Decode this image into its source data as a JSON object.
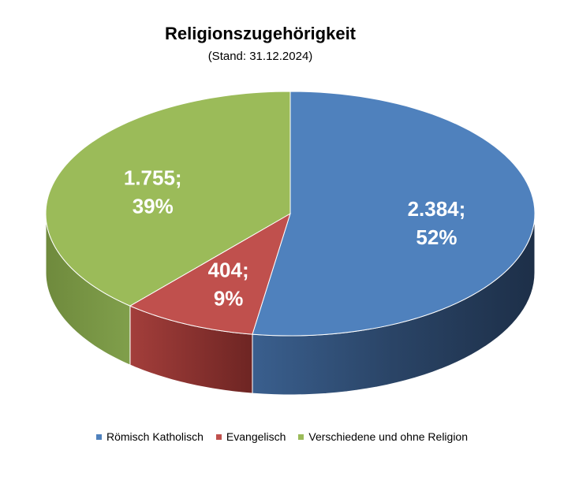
{
  "chart_data": {
    "type": "pie",
    "title": "Religionszugehörigkeit",
    "subtitle": "(Stand: 31.12.2024)",
    "slices": [
      {
        "name": "Römisch Katholisch",
        "value": 2384,
        "value_label": "2.384;",
        "percent_label": "52%",
        "color": "#4F81BD"
      },
      {
        "name": "Evangelisch",
        "value": 404,
        "value_label": "404;",
        "percent_label": "9%",
        "color": "#C0504D"
      },
      {
        "name": "Verschiedene und ohne Religion",
        "value": 1755,
        "value_label": "1.755;",
        "percent_label": "39%",
        "color": "#9BBB59"
      }
    ],
    "legend_position": "bottom",
    "style": "3d-pie"
  }
}
